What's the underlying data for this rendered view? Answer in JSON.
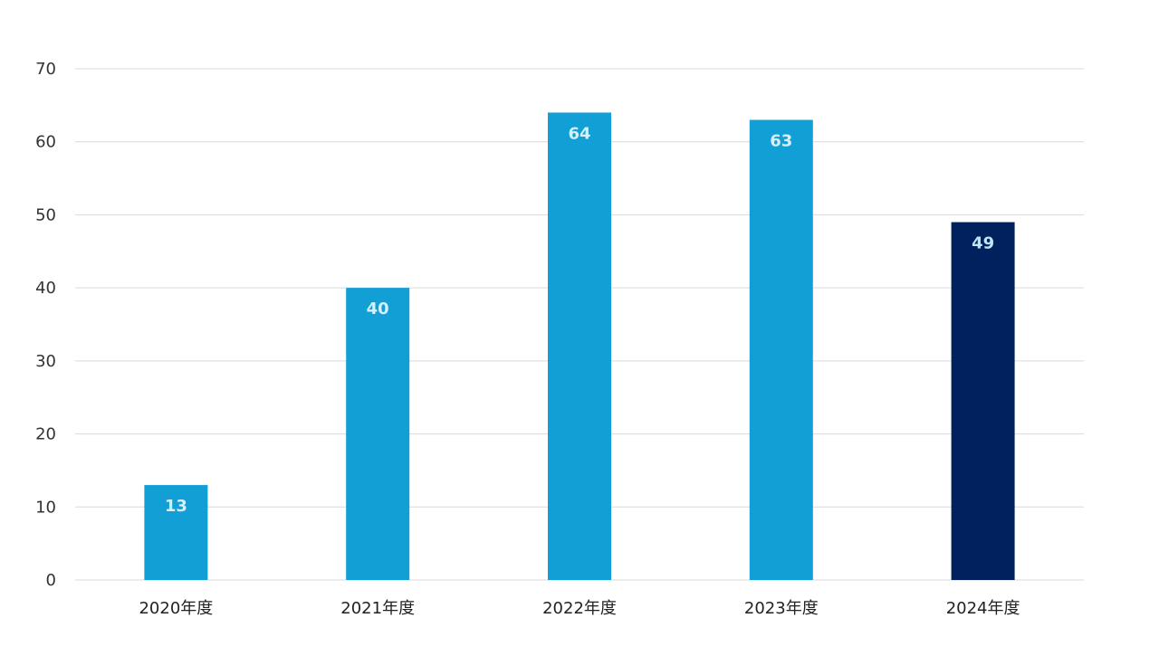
{
  "chart_data": {
    "type": "bar",
    "title": "",
    "xlabel": "",
    "ylabel": "",
    "categories": [
      "2020年度",
      "2021年度",
      "2022年度",
      "2023年度",
      "2024年度"
    ],
    "values": [
      13,
      40,
      64,
      63,
      49
    ],
    "ylim": [
      0,
      70
    ],
    "yticks": [
      0,
      10,
      20,
      30,
      40,
      50,
      60,
      70
    ],
    "grid": true,
    "legend": "none",
    "colors": {
      "bar": "#119fd6",
      "highlight_bar": "#00215e",
      "label_on_bar": "#d6f0fb",
      "label_on_highlight": "#bfe6f7",
      "grid": "#d9d9d9"
    },
    "highlight_index": 4
  }
}
